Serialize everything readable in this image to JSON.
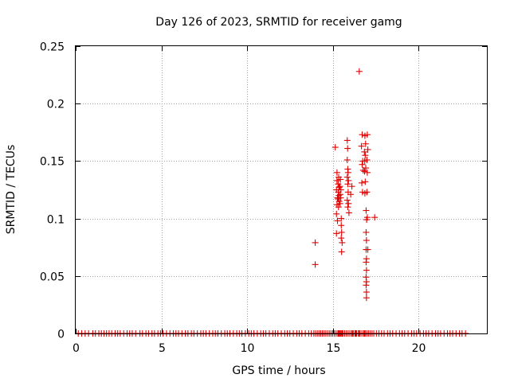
{
  "chart_data": {
    "type": "scatter",
    "title": "Day 126 of 2023, SRMTID for receiver gamg",
    "xlabel": "GPS time / hours",
    "ylabel": "SRMTID / TECUs",
    "xlim": [
      0,
      24
    ],
    "ylim": [
      0,
      0.25
    ],
    "x_ticks": [
      0,
      5,
      10,
      15,
      20
    ],
    "x_tick_labels": [
      "0",
      "5",
      "10",
      "15",
      "20"
    ],
    "y_ticks": [
      0,
      0.05,
      0.1,
      0.15,
      0.2,
      0.25
    ],
    "y_tick_labels": [
      "0",
      "0.05",
      "0.1",
      "0.15",
      "0.2",
      "0.25"
    ],
    "grid": true,
    "marker": "+",
    "series_color": "#e00000",
    "baseline": {
      "y": 0,
      "x": [
        0.15,
        0.35,
        0.55,
        0.75,
        1.0,
        1.15,
        1.35,
        1.5,
        1.65,
        1.8,
        1.95,
        2.1,
        2.3,
        2.45,
        2.6,
        2.8,
        3.0,
        3.15,
        3.3,
        3.5,
        3.75,
        3.9,
        4.1,
        4.25,
        4.45,
        4.6,
        4.8,
        4.95,
        5.1,
        5.3,
        5.5,
        5.7,
        5.85,
        6.0,
        6.2,
        6.4,
        6.55,
        6.75,
        6.9,
        7.1,
        7.3,
        7.45,
        7.6,
        7.8,
        8.0,
        8.15,
        8.3,
        8.5,
        8.7,
        8.85,
        9.0,
        9.2,
        9.4,
        9.55,
        9.7,
        9.9,
        10.1,
        10.25,
        10.4,
        10.6,
        10.8,
        10.95,
        11.1,
        11.3,
        11.5,
        11.65,
        11.8,
        12.0,
        12.2,
        12.35,
        12.5,
        12.7,
        12.9,
        13.05,
        13.2,
        13.4,
        13.6,
        13.75,
        13.9,
        14.0,
        14.1,
        14.2,
        14.3,
        14.4,
        14.5,
        14.6,
        14.7,
        14.8,
        14.9,
        15.0,
        15.1,
        15.2,
        15.3,
        15.35,
        15.4,
        15.45,
        15.5,
        15.55,
        15.6,
        15.7,
        15.8,
        15.9,
        16.0,
        16.1,
        16.15,
        16.2,
        16.3,
        16.35,
        16.4,
        16.5,
        16.55,
        16.6,
        16.7,
        16.8,
        16.85,
        16.9,
        17.0,
        17.1,
        17.2,
        17.3,
        17.4,
        17.55,
        17.7,
        17.85,
        18.0,
        18.2,
        18.35,
        18.5,
        18.7,
        18.9,
        19.05,
        19.2,
        19.4,
        19.6,
        19.75,
        19.9,
        20.1,
        20.3,
        20.45,
        20.6,
        20.8,
        21.0,
        21.15,
        21.3,
        21.5,
        21.7,
        21.85,
        22.0,
        22.2,
        22.4,
        22.55,
        22.75
      ]
    },
    "points": [
      {
        "x": 13.98,
        "y": 0.079
      },
      {
        "x": 13.98,
        "y": 0.06
      },
      {
        "x": 15.15,
        "y": 0.162
      },
      {
        "x": 15.25,
        "y": 0.14
      },
      {
        "x": 15.25,
        "y": 0.133
      },
      {
        "x": 15.22,
        "y": 0.125
      },
      {
        "x": 15.28,
        "y": 0.118
      },
      {
        "x": 15.25,
        "y": 0.112
      },
      {
        "x": 15.22,
        "y": 0.104
      },
      {
        "x": 15.28,
        "y": 0.098
      },
      {
        "x": 15.22,
        "y": 0.087
      },
      {
        "x": 15.35,
        "y": 0.136
      },
      {
        "x": 15.32,
        "y": 0.13
      },
      {
        "x": 15.38,
        "y": 0.127
      },
      {
        "x": 15.33,
        "y": 0.123
      },
      {
        "x": 15.36,
        "y": 0.12
      },
      {
        "x": 15.32,
        "y": 0.117
      },
      {
        "x": 15.38,
        "y": 0.115
      },
      {
        "x": 15.34,
        "y": 0.11
      },
      {
        "x": 15.45,
        "y": 0.134
      },
      {
        "x": 15.42,
        "y": 0.128
      },
      {
        "x": 15.48,
        "y": 0.125
      },
      {
        "x": 15.44,
        "y": 0.121
      },
      {
        "x": 15.47,
        "y": 0.118
      },
      {
        "x": 15.43,
        "y": 0.113
      },
      {
        "x": 15.5,
        "y": 0.1
      },
      {
        "x": 15.5,
        "y": 0.094
      },
      {
        "x": 15.52,
        "y": 0.088
      },
      {
        "x": 15.5,
        "y": 0.083
      },
      {
        "x": 15.55,
        "y": 0.079
      },
      {
        "x": 15.52,
        "y": 0.071
      },
      {
        "x": 15.85,
        "y": 0.168
      },
      {
        "x": 15.87,
        "y": 0.161
      },
      {
        "x": 15.85,
        "y": 0.151
      },
      {
        "x": 15.88,
        "y": 0.143
      },
      {
        "x": 15.9,
        "y": 0.14
      },
      {
        "x": 15.85,
        "y": 0.136
      },
      {
        "x": 15.92,
        "y": 0.133
      },
      {
        "x": 15.88,
        "y": 0.13
      },
      {
        "x": 15.9,
        "y": 0.123
      },
      {
        "x": 15.85,
        "y": 0.116
      },
      {
        "x": 15.92,
        "y": 0.113
      },
      {
        "x": 15.88,
        "y": 0.11
      },
      {
        "x": 15.95,
        "y": 0.105
      },
      {
        "x": 16.05,
        "y": 0.121
      },
      {
        "x": 16.12,
        "y": 0.128
      },
      {
        "x": 16.55,
        "y": 0.228
      },
      {
        "x": 16.72,
        "y": 0.173
      },
      {
        "x": 16.68,
        "y": 0.163
      },
      {
        "x": 16.75,
        "y": 0.15
      },
      {
        "x": 16.72,
        "y": 0.147
      },
      {
        "x": 16.78,
        "y": 0.142
      },
      {
        "x": 16.7,
        "y": 0.131
      },
      {
        "x": 16.74,
        "y": 0.123
      },
      {
        "x": 16.88,
        "y": 0.172
      },
      {
        "x": 16.92,
        "y": 0.165
      },
      {
        "x": 16.85,
        "y": 0.158
      },
      {
        "x": 16.9,
        "y": 0.155
      },
      {
        "x": 16.87,
        "y": 0.15
      },
      {
        "x": 16.93,
        "y": 0.144
      },
      {
        "x": 16.86,
        "y": 0.141
      },
      {
        "x": 16.9,
        "y": 0.132
      },
      {
        "x": 16.88,
        "y": 0.122
      },
      {
        "x": 17.02,
        "y": 0.173
      },
      {
        "x": 17.05,
        "y": 0.16
      },
      {
        "x": 17.0,
        "y": 0.151
      },
      {
        "x": 17.02,
        "y": 0.14
      },
      {
        "x": 17.0,
        "y": 0.123
      },
      {
        "x": 17.02,
        "y": 0.101
      },
      {
        "x": 16.95,
        "y": 0.107
      },
      {
        "x": 16.98,
        "y": 0.099
      },
      {
        "x": 16.95,
        "y": 0.088
      },
      {
        "x": 16.97,
        "y": 0.081
      },
      {
        "x": 16.95,
        "y": 0.073
      },
      {
        "x": 16.97,
        "y": 0.065
      },
      {
        "x": 16.95,
        "y": 0.062
      },
      {
        "x": 16.97,
        "y": 0.055
      },
      {
        "x": 16.95,
        "y": 0.049
      },
      {
        "x": 16.97,
        "y": 0.045
      },
      {
        "x": 16.95,
        "y": 0.042
      },
      {
        "x": 16.97,
        "y": 0.036
      },
      {
        "x": 16.97,
        "y": 0.031
      },
      {
        "x": 17.05,
        "y": 0.073
      },
      {
        "x": 17.45,
        "y": 0.101
      }
    ]
  }
}
